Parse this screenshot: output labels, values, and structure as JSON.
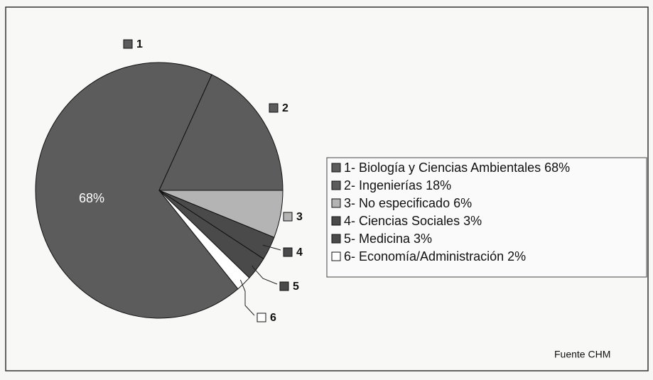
{
  "chart_data": {
    "type": "pie",
    "categories": [
      "1",
      "2",
      "3",
      "4",
      "5",
      "6"
    ],
    "values": [
      68,
      18,
      6,
      3,
      3,
      2
    ],
    "value_labels": [
      "68%",
      null,
      null,
      null,
      null,
      null
    ],
    "colors": [
      "#5c5c5c",
      "#5c5c5c",
      "#b4b4b4",
      "#4a4a4a",
      "#4a4a4a",
      "#ffffff"
    ],
    "legend": [
      "1- Biología y Ciencias Ambientales 68%",
      "2- Ingenierías 18%",
      "3- No especificado 6%",
      "4- Ciencias Sociales 3%",
      "5- Medicina 3%",
      "6- Economía/Administración 2%"
    ],
    "source": "Fuente CHM"
  }
}
